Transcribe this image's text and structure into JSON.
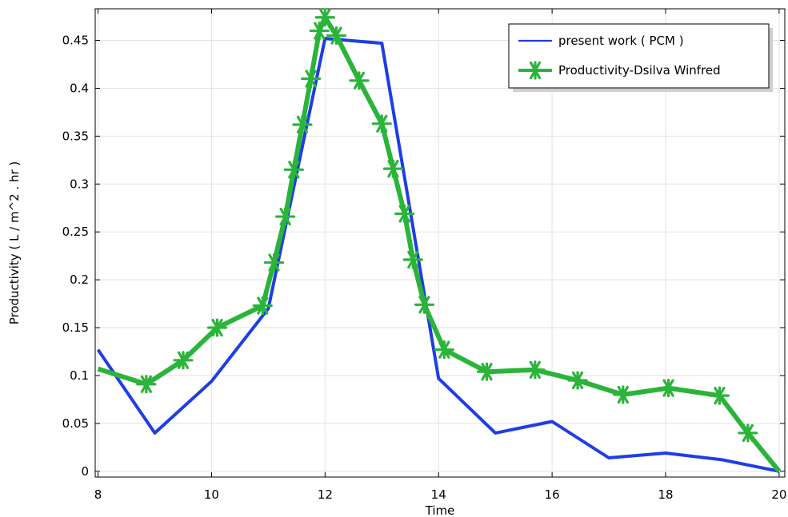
{
  "chart_data": {
    "type": "line",
    "title": "",
    "xlabel": "Time",
    "ylabel": "Productivity ( L / m^2 . hr )",
    "xlim": [
      7.95,
      20.1
    ],
    "ylim": [
      -0.006,
      0.483
    ],
    "x_ticks": [
      8,
      10,
      12,
      14,
      16,
      18,
      20
    ],
    "x_tick_labels": [
      "8",
      "10",
      "12",
      "14",
      "16",
      "18",
      "20"
    ],
    "y_ticks": [
      0,
      0.05,
      0.1,
      0.15,
      0.2,
      0.25,
      0.3,
      0.35,
      0.4,
      0.45
    ],
    "y_tick_labels": [
      "0",
      "0.05",
      "0.1",
      "0.15",
      "0.2",
      "0.25",
      "0.3",
      "0.35",
      "0.4",
      "0.45"
    ],
    "grid": true,
    "legend_position": "top-right",
    "series": [
      {
        "name": "present work ( PCM )",
        "color": "#1f3de6",
        "marker": "none",
        "x": [
          8,
          9,
          10,
          11,
          12,
          13,
          14,
          15,
          16,
          17,
          18,
          19,
          20
        ],
        "y": [
          0.127,
          0.04,
          0.094,
          0.17,
          0.452,
          0.447,
          0.097,
          0.04,
          0.052,
          0.014,
          0.019,
          0.012,
          0.0
        ]
      },
      {
        "name": "Productivity-Dsilva Winfred",
        "color": "#2bb43a",
        "marker": "asterisk",
        "x": [
          8,
          8.85,
          9.5,
          10.1,
          10.9,
          11.1,
          11.3,
          11.45,
          11.6,
          11.75,
          11.9,
          12.0,
          12.2,
          12.6,
          13.0,
          13.2,
          13.4,
          13.55,
          13.75,
          14.1,
          14.85,
          15.7,
          16.45,
          17.25,
          18.05,
          18.95,
          19.45,
          20
        ],
        "y": [
          0.107,
          0.091,
          0.116,
          0.15,
          0.173,
          0.218,
          0.266,
          0.315,
          0.362,
          0.41,
          0.46,
          0.474,
          0.455,
          0.408,
          0.363,
          0.316,
          0.269,
          0.221,
          0.174,
          0.127,
          0.104,
          0.106,
          0.095,
          0.08,
          0.087,
          0.079,
          0.04,
          0.0
        ]
      }
    ]
  }
}
